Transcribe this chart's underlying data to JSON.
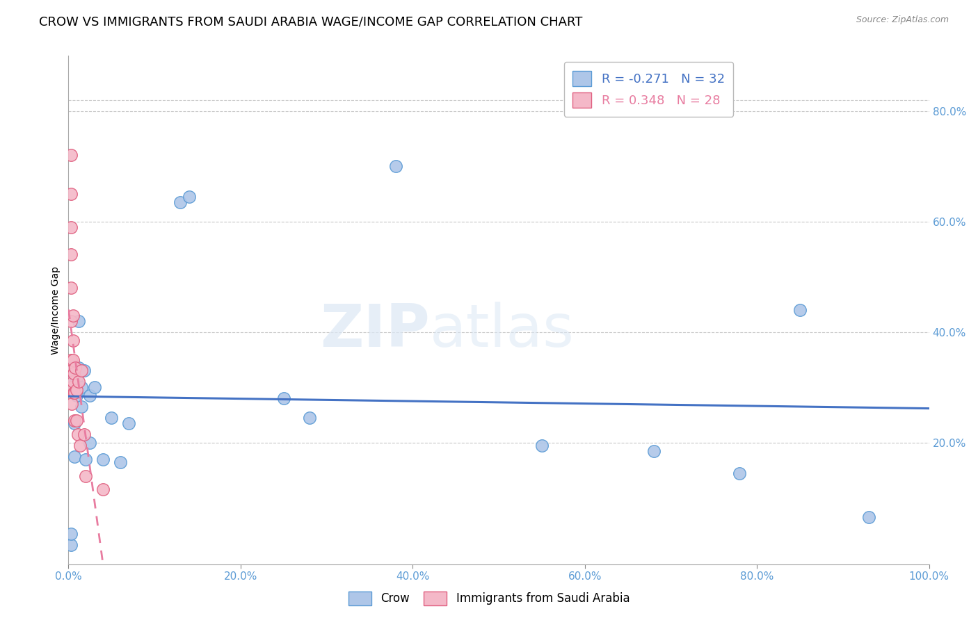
{
  "title": "CROW VS IMMIGRANTS FROM SAUDI ARABIA WAGE/INCOME GAP CORRELATION CHART",
  "source": "Source: ZipAtlas.com",
  "ylabel": "Wage/Income Gap",
  "xlim": [
    0.0,
    1.0
  ],
  "ylim": [
    -0.02,
    0.9
  ],
  "xticks": [
    0.0,
    0.2,
    0.4,
    0.6,
    0.8,
    1.0
  ],
  "xtick_labels": [
    "0.0%",
    "20.0%",
    "40.0%",
    "60.0%",
    "80.0%",
    "100.0%"
  ],
  "right_ytick_labels": [
    "80.0%",
    "60.0%",
    "40.0%",
    "20.0%"
  ],
  "right_ytick_positions": [
    0.8,
    0.6,
    0.4,
    0.2
  ],
  "crow_color": "#aec6e8",
  "crow_edge_color": "#5b9bd5",
  "imm_color": "#f4b8c8",
  "imm_edge_color": "#e06080",
  "trendline_crow_color": "#4472c4",
  "trendline_imm_color": "#e87ca0",
  "legend_R_crow": "-0.271",
  "legend_N_crow": "32",
  "legend_R_imm": "0.348",
  "legend_N_imm": "28",
  "crow_x": [
    0.003,
    0.003,
    0.005,
    0.005,
    0.007,
    0.007,
    0.009,
    0.009,
    0.009,
    0.012,
    0.012,
    0.015,
    0.015,
    0.018,
    0.02,
    0.025,
    0.025,
    0.03,
    0.04,
    0.05,
    0.06,
    0.07,
    0.13,
    0.14,
    0.25,
    0.28,
    0.38,
    0.55,
    0.68,
    0.78,
    0.85,
    0.93
  ],
  "crow_y": [
    0.015,
    0.035,
    0.315,
    0.335,
    0.175,
    0.235,
    0.285,
    0.3,
    0.315,
    0.335,
    0.42,
    0.265,
    0.3,
    0.33,
    0.17,
    0.2,
    0.285,
    0.3,
    0.17,
    0.245,
    0.165,
    0.235,
    0.635,
    0.645,
    0.28,
    0.245,
    0.7,
    0.195,
    0.185,
    0.145,
    0.44,
    0.065
  ],
  "imm_x": [
    0.003,
    0.003,
    0.003,
    0.003,
    0.003,
    0.003,
    0.003,
    0.004,
    0.004,
    0.004,
    0.005,
    0.005,
    0.005,
    0.005,
    0.006,
    0.006,
    0.007,
    0.007,
    0.008,
    0.009,
    0.009,
    0.011,
    0.012,
    0.013,
    0.015,
    0.018,
    0.02,
    0.04
  ],
  "imm_y": [
    0.72,
    0.65,
    0.59,
    0.54,
    0.48,
    0.42,
    0.35,
    0.33,
    0.3,
    0.27,
    0.43,
    0.385,
    0.35,
    0.31,
    0.325,
    0.29,
    0.29,
    0.24,
    0.335,
    0.295,
    0.24,
    0.215,
    0.31,
    0.195,
    0.33,
    0.215,
    0.14,
    0.115
  ],
  "watermark_zip": "ZIP",
  "watermark_atlas": "atlas",
  "background_color": "#ffffff",
  "grid_color": "#c8c8c8",
  "tick_color": "#5b9bd5",
  "title_fontsize": 13,
  "axis_label_fontsize": 10,
  "tick_fontsize": 11,
  "marker_size": 160
}
